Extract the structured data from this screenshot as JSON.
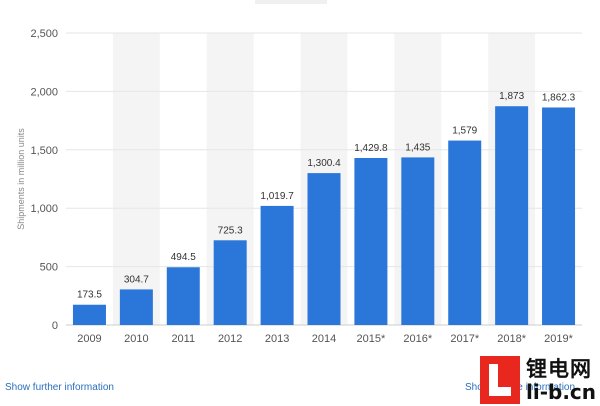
{
  "chart_data": {
    "type": "bar",
    "categories": [
      "2009",
      "2010",
      "2011",
      "2012",
      "2013",
      "2014",
      "2015*",
      "2016*",
      "2017*",
      "2018*",
      "2019*"
    ],
    "values": [
      173.5,
      304.7,
      494.5,
      725.3,
      1019.7,
      1300.4,
      1429.8,
      1435,
      1579,
      1873,
      1862.3
    ],
    "value_labels": [
      "173.5",
      "304.7",
      "494.5",
      "725.3",
      "1,019.7",
      "1,300.4",
      "1,429.8",
      "1,435",
      "1,579",
      "1,873",
      "1,862.3"
    ],
    "ylabel": "Shipments in million units",
    "xlabel": "",
    "ylim": [
      0,
      2500
    ],
    "yticks": [
      0,
      500,
      1000,
      1500,
      2000,
      2500
    ],
    "ytick_labels": [
      "0",
      "500",
      "1,000",
      "1,500",
      "2,000",
      "2,500"
    ],
    "grid": true,
    "bar_color": "#2a77d9",
    "band_color": "#f4f4f4"
  },
  "links": {
    "further_info": "Show further information",
    "source": "Show source information"
  },
  "watermark": {
    "line1": "锂电网",
    "line2": "li-b.cn",
    "accent": "#e8281e"
  }
}
